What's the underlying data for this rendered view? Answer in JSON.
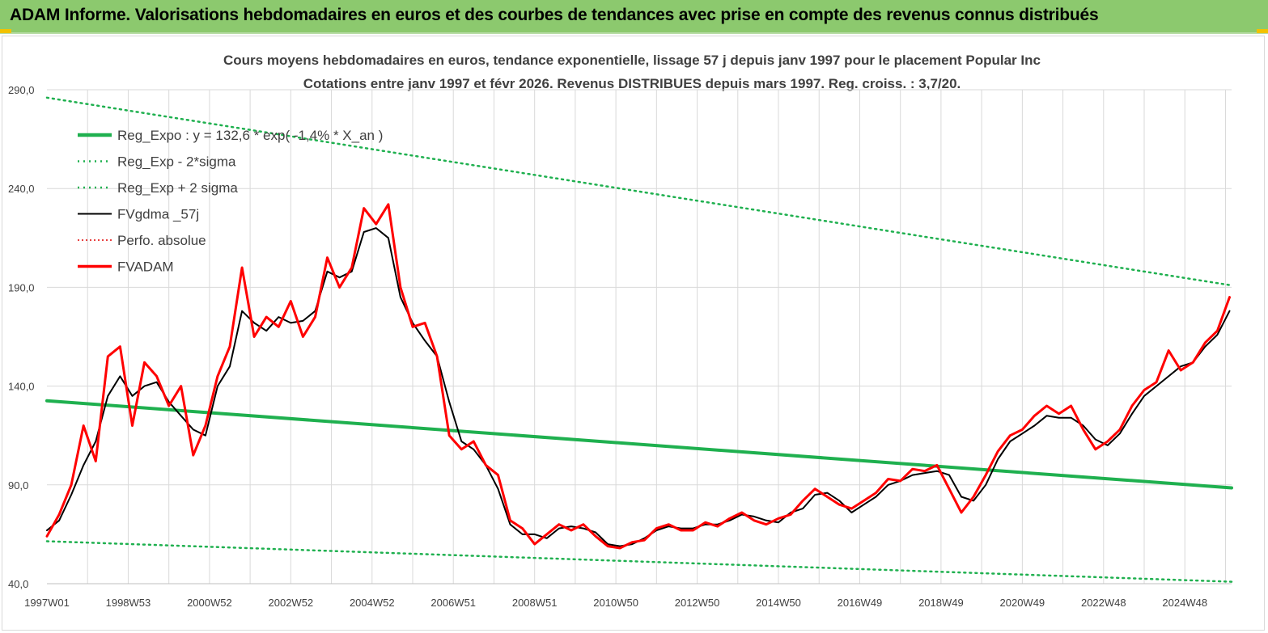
{
  "header": {
    "title": "ADAM Informe. Valorisations hebdomadaires en euros et des courbes de tendances avec prise en compte des revenus connus distribués"
  },
  "chart_data": {
    "type": "line",
    "title": "Cours moyens hebdomadaires en euros, tendance exponentielle, lissage 57 j depuis janv 1997 pour le placement Popular Inc",
    "subtitle": "Cotations entre janv 1997 et févr 2026. Revenus DISTRIBUES depuis mars 1997. Reg. croiss. : 3,7/20.",
    "xlabel": "",
    "ylabel": "",
    "ylim": [
      40,
      290
    ],
    "xlim": [
      1997.0,
      2026.15
    ],
    "yticks": [
      "290,0",
      "240,0",
      "190,0",
      "140,0",
      "90,0",
      "40,0"
    ],
    "yticks_values": [
      290,
      240,
      190,
      140,
      90,
      40
    ],
    "xticks": [
      "1997W01",
      "1998W53",
      "2000W52",
      "2002W52",
      "2004W52",
      "2006W51",
      "2008W51",
      "2010W50",
      "2012W50",
      "2014W50",
      "2016W49",
      "2018W49",
      "2020W49",
      "2022W48",
      "2024W48"
    ],
    "xticks_values": [
      1997.0,
      1999.0,
      2001.0,
      2003.0,
      2005.0,
      2007.0,
      2009.0,
      2011.0,
      2013.0,
      2015.0,
      2017.0,
      2019.0,
      2021.0,
      2023.0,
      2025.0
    ],
    "grid": true,
    "legend_position": "top-left",
    "colors": {
      "reg_expo": "#1fb04f",
      "band": "#1fb04f",
      "fvgdma": "#000000",
      "perfo": "#e00000",
      "fvadam": "#ff0000",
      "grid": "#d9d9d9",
      "axis_text": "#404040"
    },
    "series": [
      {
        "name": "Reg_Expo : y = 132,6 * exp( -1,4% *  X_an )",
        "style": "solid",
        "x": [
          1997.0,
          2026.15
        ],
        "values": [
          132.6,
          88.5
        ]
      },
      {
        "name": "Reg_Exp - 2*sigma",
        "style": "dotted",
        "x": [
          1997.0,
          2026.15
        ],
        "values": [
          61.5,
          41.0
        ]
      },
      {
        "name": "Reg_Exp + 2 sigma",
        "style": "dotted",
        "x": [
          1997.0,
          2026.15
        ],
        "values": [
          286.0,
          191.0
        ]
      },
      {
        "name": "FVgdma _57j",
        "style": "solid",
        "x": [
          1997.0,
          1997.3,
          1997.6,
          1997.9,
          1998.2,
          1998.5,
          1998.8,
          1999.1,
          1999.4,
          1999.7,
          2000.0,
          2000.3,
          2000.6,
          2000.9,
          2001.2,
          2001.5,
          2001.8,
          2002.1,
          2002.4,
          2002.7,
          2003.0,
          2003.3,
          2003.6,
          2003.9,
          2004.2,
          2004.5,
          2004.8,
          2005.1,
          2005.4,
          2005.7,
          2006.0,
          2006.3,
          2006.6,
          2006.9,
          2007.2,
          2007.5,
          2007.8,
          2008.1,
          2008.4,
          2008.7,
          2009.0,
          2009.3,
          2009.6,
          2009.9,
          2010.2,
          2010.5,
          2010.8,
          2011.1,
          2011.4,
          2011.7,
          2012.0,
          2012.3,
          2012.6,
          2012.9,
          2013.2,
          2013.5,
          2013.8,
          2014.1,
          2014.4,
          2014.7,
          2015.0,
          2015.3,
          2015.6,
          2015.9,
          2016.2,
          2016.5,
          2016.8,
          2017.1,
          2017.4,
          2017.7,
          2018.0,
          2018.3,
          2018.6,
          2018.9,
          2019.2,
          2019.5,
          2019.8,
          2020.1,
          2020.4,
          2020.7,
          2021.0,
          2021.3,
          2021.6,
          2021.9,
          2022.2,
          2022.5,
          2022.8,
          2023.1,
          2023.4,
          2023.7,
          2024.0,
          2024.3,
          2024.6,
          2024.9,
          2025.2,
          2025.5,
          2025.8,
          2026.1
        ],
        "values": [
          67,
          72,
          85,
          100,
          112,
          135,
          145,
          135,
          140,
          142,
          132,
          125,
          118,
          115,
          140,
          150,
          178,
          172,
          168,
          175,
          172,
          173,
          178,
          198,
          195,
          198,
          218,
          220,
          215,
          185,
          172,
          163,
          155,
          132,
          112,
          108,
          100,
          88,
          70,
          65,
          65,
          63,
          68,
          69,
          68,
          66,
          60,
          59,
          60,
          63,
          67,
          69,
          68,
          68,
          70,
          70,
          72,
          75,
          74,
          72,
          71,
          76,
          78,
          85,
          86,
          82,
          76,
          80,
          84,
          90,
          92,
          95,
          96,
          97,
          95,
          84,
          82,
          90,
          103,
          112,
          116,
          120,
          125,
          124,
          124,
          120,
          113,
          110,
          116,
          126,
          135,
          140,
          145,
          150,
          152,
          160,
          166,
          178
        ]
      },
      {
        "name": "Perfo. absolue",
        "style": "dotted",
        "x": [],
        "values": []
      },
      {
        "name": "FVADAM",
        "style": "solid",
        "x": [
          1997.0,
          1997.3,
          1997.6,
          1997.9,
          1998.2,
          1998.5,
          1998.8,
          1999.1,
          1999.4,
          1999.7,
          2000.0,
          2000.3,
          2000.6,
          2000.9,
          2001.2,
          2001.5,
          2001.8,
          2002.1,
          2002.4,
          2002.7,
          2003.0,
          2003.3,
          2003.6,
          2003.9,
          2004.2,
          2004.5,
          2004.8,
          2005.1,
          2005.4,
          2005.7,
          2006.0,
          2006.3,
          2006.6,
          2006.9,
          2007.2,
          2007.5,
          2007.8,
          2008.1,
          2008.4,
          2008.7,
          2009.0,
          2009.3,
          2009.6,
          2009.9,
          2010.2,
          2010.5,
          2010.8,
          2011.1,
          2011.4,
          2011.7,
          2012.0,
          2012.3,
          2012.6,
          2012.9,
          2013.2,
          2013.5,
          2013.8,
          2014.1,
          2014.4,
          2014.7,
          2015.0,
          2015.3,
          2015.6,
          2015.9,
          2016.2,
          2016.5,
          2016.8,
          2017.1,
          2017.4,
          2017.7,
          2018.0,
          2018.3,
          2018.6,
          2018.9,
          2019.2,
          2019.5,
          2019.8,
          2020.1,
          2020.4,
          2020.7,
          2021.0,
          2021.3,
          2021.6,
          2021.9,
          2022.2,
          2022.5,
          2022.8,
          2023.1,
          2023.4,
          2023.7,
          2024.0,
          2024.3,
          2024.6,
          2024.9,
          2025.2,
          2025.5,
          2025.8,
          2026.1
        ],
        "values": [
          64,
          75,
          90,
          120,
          102,
          155,
          160,
          120,
          152,
          145,
          130,
          140,
          105,
          120,
          145,
          160,
          200,
          165,
          175,
          170,
          183,
          165,
          175,
          205,
          190,
          200,
          230,
          222,
          232,
          190,
          170,
          172,
          155,
          115,
          108,
          112,
          100,
          95,
          72,
          68,
          60,
          65,
          70,
          67,
          70,
          64,
          59,
          58,
          61,
          62,
          68,
          70,
          67,
          67,
          71,
          69,
          73,
          76,
          72,
          70,
          73,
          75,
          82,
          88,
          84,
          80,
          78,
          82,
          86,
          93,
          92,
          98,
          97,
          100,
          88,
          76,
          84,
          95,
          107,
          115,
          118,
          125,
          130,
          126,
          130,
          118,
          108,
          112,
          118,
          130,
          138,
          142,
          158,
          148,
          152,
          162,
          168,
          185
        ]
      }
    ]
  }
}
